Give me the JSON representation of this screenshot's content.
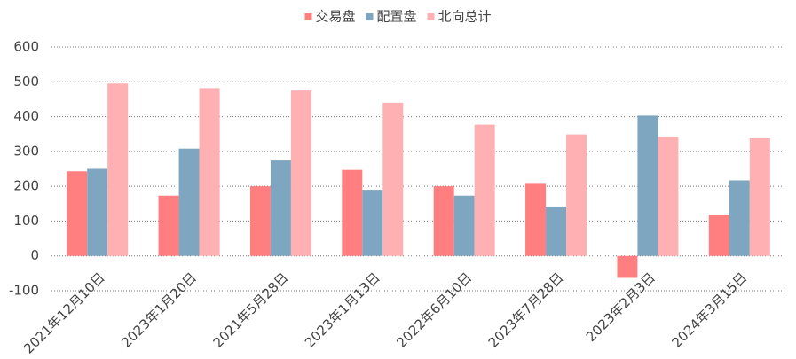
{
  "chart_data": {
    "type": "bar",
    "categories": [
      "2021年12月10日",
      "2023年1月20日",
      "2021年5月28日",
      "2023年1月13日",
      "2022年6月10日",
      "2023年7月28日",
      "2023年2月3日",
      "2024年3月15日"
    ],
    "series": [
      {
        "name": "交易盘",
        "color": "#ff7f80",
        "values": [
          243,
          173,
          200,
          247,
          200,
          207,
          -63,
          118
        ]
      },
      {
        "name": "配置盘",
        "color": "#7fa6c0",
        "values": [
          250,
          308,
          274,
          190,
          173,
          142,
          403,
          217
        ]
      },
      {
        "name": "北向总计",
        "color": "#ffb0b3",
        "values": [
          495,
          482,
          475,
          440,
          377,
          349,
          342,
          338
        ]
      }
    ],
    "ylim": [
      -100,
      600
    ],
    "yticks": [
      -100,
      0,
      100,
      200,
      300,
      400,
      500,
      600
    ],
    "grid": true,
    "legend": "top"
  }
}
